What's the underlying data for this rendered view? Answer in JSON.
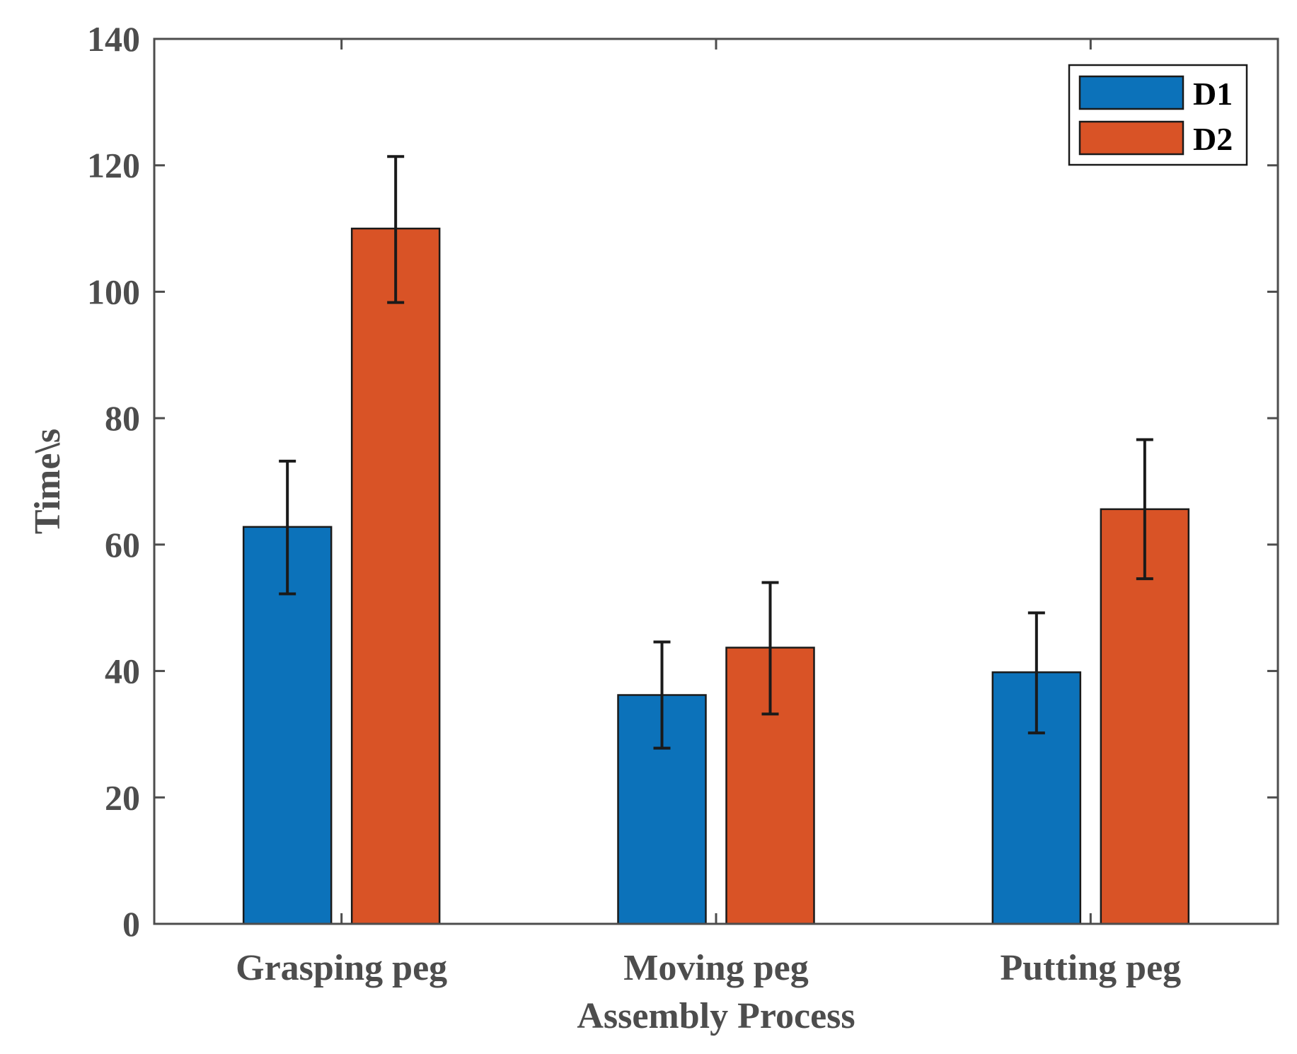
{
  "chart_data": {
    "type": "bar",
    "title": "",
    "xlabel": "Assembly Process",
    "ylabel": "Time\\s",
    "categories": [
      "Grasping peg",
      "Moving peg",
      "Putting peg"
    ],
    "ylim": [
      0,
      140
    ],
    "yticks": [
      "0",
      "20",
      "40",
      "60",
      "80",
      "100",
      "120",
      "140"
    ],
    "grid": false,
    "legend_position": "top-right",
    "series": [
      {
        "name": "D1",
        "color": "#0C72BA",
        "values": [
          62.8,
          36.2,
          39.8
        ],
        "error_low": [
          52.2,
          27.8,
          30.2
        ],
        "error_high": [
          73.2,
          44.6,
          49.2
        ]
      },
      {
        "name": "D2",
        "color": "#D95326",
        "values": [
          110.0,
          43.7,
          65.6
        ],
        "error_low": [
          98.3,
          33.2,
          54.6
        ],
        "error_high": [
          121.4,
          54.0,
          76.6
        ]
      }
    ]
  }
}
